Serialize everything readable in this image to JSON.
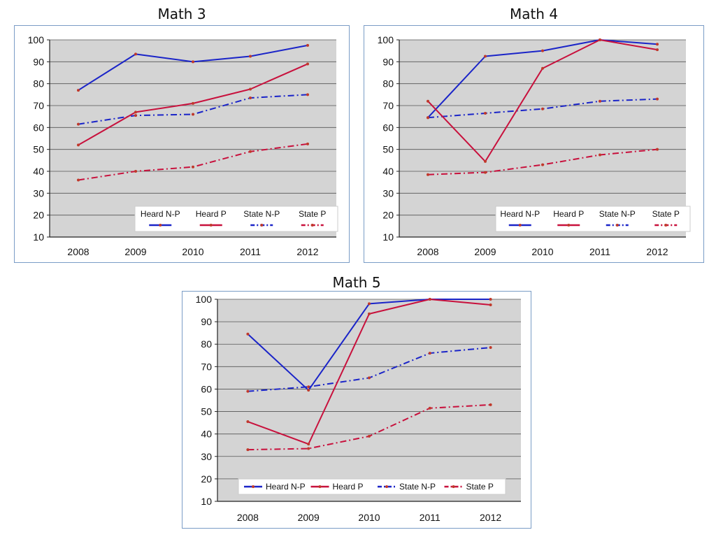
{
  "chart_data": [
    {
      "type": "line",
      "title": "Math 3",
      "x": [
        "2008",
        "2009",
        "2010",
        "2011",
        "2012"
      ],
      "ylim": [
        10,
        100
      ],
      "yticks": [
        10,
        20,
        30,
        40,
        50,
        60,
        70,
        80,
        90,
        100
      ],
      "grid": true,
      "legend_position": "bottom-right",
      "legend_layout": "stacked",
      "series": [
        {
          "name": "Heard N-P",
          "values": [
            77,
            93.5,
            90,
            92.5,
            97.5
          ]
        },
        {
          "name": "Heard P",
          "values": [
            52,
            67,
            71,
            77.5,
            89
          ]
        },
        {
          "name": "State N-P",
          "values": [
            61.5,
            65.5,
            66,
            73.5,
            75
          ]
        },
        {
          "name": "State P",
          "values": [
            36,
            40,
            42,
            49,
            52.5
          ]
        }
      ]
    },
    {
      "type": "line",
      "title": "Math 4",
      "x": [
        "2008",
        "2009",
        "2010",
        "2011",
        "2012"
      ],
      "ylim": [
        10,
        100
      ],
      "yticks": [
        10,
        20,
        30,
        40,
        50,
        60,
        70,
        80,
        90,
        100
      ],
      "grid": true,
      "legend_position": "bottom-right",
      "legend_layout": "stacked",
      "series": [
        {
          "name": "Heard N-P",
          "values": [
            64.5,
            92.5,
            95,
            100,
            98
          ]
        },
        {
          "name": "Heard P",
          "values": [
            72,
            44.5,
            87,
            100,
            95.5
          ]
        },
        {
          "name": "State N-P",
          "values": [
            64.5,
            66.5,
            68.5,
            72,
            73
          ]
        },
        {
          "name": "State P",
          "values": [
            38.5,
            39.5,
            43,
            47.5,
            50
          ]
        }
      ]
    },
    {
      "type": "line",
      "title": "Math 5",
      "x": [
        "2008",
        "2009",
        "2010",
        "2011",
        "2012"
      ],
      "ylim": [
        10,
        100
      ],
      "yticks": [
        10,
        20,
        30,
        40,
        50,
        60,
        70,
        80,
        90,
        100
      ],
      "grid": true,
      "legend_position": "bottom",
      "legend_layout": "inline",
      "series": [
        {
          "name": "Heard N-P",
          "values": [
            84.5,
            59.5,
            98,
            100,
            100
          ]
        },
        {
          "name": "Heard P",
          "values": [
            45.5,
            35.5,
            93.5,
            100,
            97.5
          ]
        },
        {
          "name": "State N-P",
          "values": [
            59,
            61,
            65,
            76,
            78.5
          ]
        },
        {
          "name": "State P",
          "values": [
            33,
            33.5,
            39,
            51.5,
            53
          ]
        }
      ]
    }
  ],
  "styles": {
    "series_colors": [
      "#1a24c8",
      "#c8103c",
      "#1a24c8",
      "#c8103c"
    ],
    "series_dash": [
      "solid",
      "solid",
      "dash-dot",
      "dash-dot"
    ],
    "marker_color": "#c0392b",
    "plot_background": "#d4d4d4",
    "gridline_color": "#555555",
    "border_color": "#7a9cc6"
  }
}
